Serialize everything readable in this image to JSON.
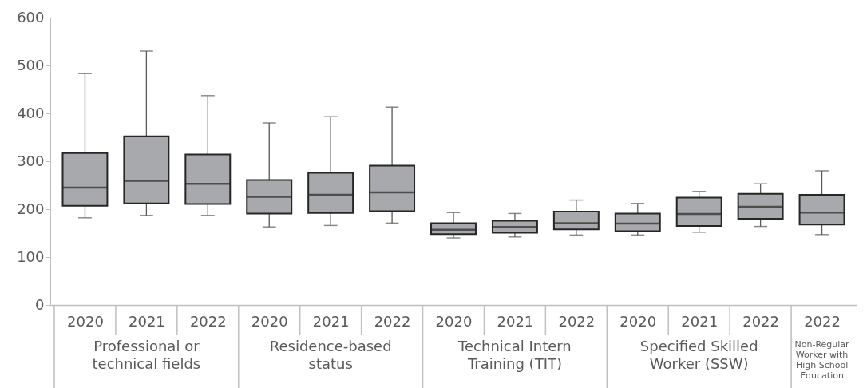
{
  "chart_data": {
    "type": "box",
    "categories": [
      "2020",
      "2021",
      "2022",
      "2020",
      "2021",
      "2022",
      "2020",
      "2021",
      "2022",
      "2020",
      "2021",
      "2022",
      "2022"
    ],
    "boxes": [
      {
        "low": 182,
        "q1": 207,
        "median": 245,
        "q3": 317,
        "high": 483
      },
      {
        "low": 187,
        "q1": 212,
        "median": 259,
        "q3": 352,
        "high": 530
      },
      {
        "low": 187,
        "q1": 211,
        "median": 253,
        "q3": 314,
        "high": 437
      },
      {
        "low": 163,
        "q1": 191,
        "median": 226,
        "q3": 261,
        "high": 380
      },
      {
        "low": 166,
        "q1": 192,
        "median": 230,
        "q3": 276,
        "high": 393
      },
      {
        "low": 171,
        "q1": 196,
        "median": 235,
        "q3": 291,
        "high": 413
      },
      {
        "low": 140,
        "q1": 148,
        "median": 157,
        "q3": 171,
        "high": 193
      },
      {
        "low": 142,
        "q1": 151,
        "median": 163,
        "q3": 176,
        "high": 191
      },
      {
        "low": 146,
        "q1": 158,
        "median": 171,
        "q3": 195,
        "high": 219
      },
      {
        "low": 146,
        "q1": 154,
        "median": 170,
        "q3": 191,
        "high": 212
      },
      {
        "low": 152,
        "q1": 165,
        "median": 190,
        "q3": 224,
        "high": 237
      },
      {
        "low": 164,
        "q1": 180,
        "median": 205,
        "q3": 232,
        "high": 253
      },
      {
        "low": 147,
        "q1": 168,
        "median": 193,
        "q3": 230,
        "high": 280
      }
    ],
    "color": "#a8a9ac",
    "ylim": [
      0,
      600
    ],
    "yticks": [
      0,
      100,
      200,
      300,
      400,
      500,
      600
    ],
    "grid": false,
    "annotations": [
      "Professional or technical fields",
      "Residence-based status",
      "Technical Intern Training (TIT)",
      "Specified Skilled Worker (SSW)",
      "Non-Regular Worker with High School Education"
    ]
  }
}
